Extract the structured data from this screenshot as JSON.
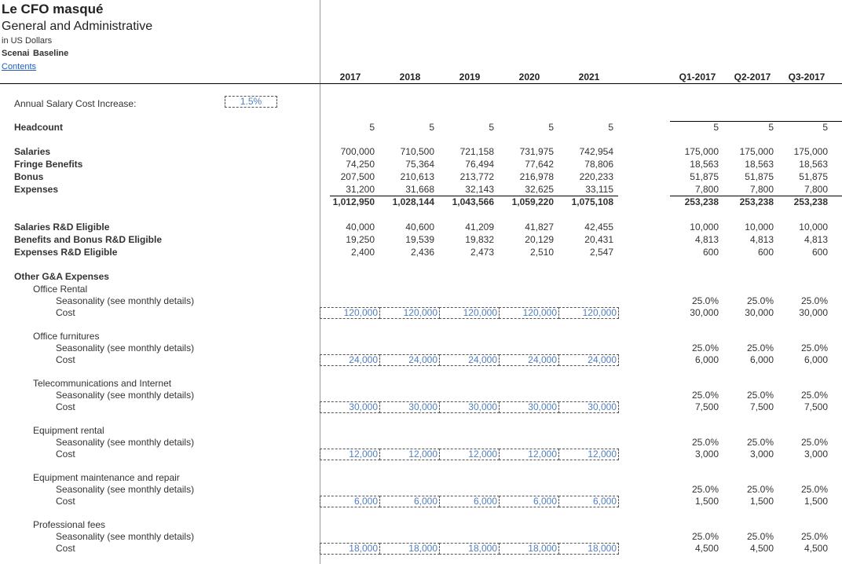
{
  "header": {
    "title": "Le CFO masqué",
    "subtitle": "General and Administrative",
    "units": "in US Dollars",
    "scenario_label": "Scenai",
    "scenario": "Baseline",
    "link": "Contents"
  },
  "years": [
    "2017",
    "2018",
    "2019",
    "2020",
    "2021"
  ],
  "quarters": [
    "Q1-2017",
    "Q2-2017",
    "Q3-2017"
  ],
  "salary_increase": {
    "label": "Annual Salary Cost Increase:",
    "value": "1.5%"
  },
  "headcount": {
    "label": "Headcount",
    "years": [
      "5",
      "5",
      "5",
      "5",
      "5"
    ],
    "quarters": [
      "5",
      "5",
      "5"
    ]
  },
  "payroll": [
    {
      "label": "Salaries",
      "years": [
        "700,000",
        "710,500",
        "721,158",
        "731,975",
        "742,954"
      ],
      "quarters": [
        "175,000",
        "175,000",
        "175,000"
      ]
    },
    {
      "label": "Fringe Benefits",
      "years": [
        "74,250",
        "75,364",
        "76,494",
        "77,642",
        "78,806"
      ],
      "quarters": [
        "18,563",
        "18,563",
        "18,563"
      ]
    },
    {
      "label": "Bonus",
      "years": [
        "207,500",
        "210,613",
        "213,772",
        "216,978",
        "220,233"
      ],
      "quarters": [
        "51,875",
        "51,875",
        "51,875"
      ]
    },
    {
      "label": "Expenses",
      "years": [
        "31,200",
        "31,668",
        "32,143",
        "32,625",
        "33,115"
      ],
      "quarters": [
        "7,800",
        "7,800",
        "7,800"
      ]
    }
  ],
  "payroll_total": {
    "years": [
      "1,012,950",
      "1,028,144",
      "1,043,566",
      "1,059,220",
      "1,075,108"
    ],
    "quarters": [
      "253,238",
      "253,238",
      "253,238"
    ]
  },
  "rd": [
    {
      "label": "Salaries R&D Eligible",
      "years": [
        "40,000",
        "40,600",
        "41,209",
        "41,827",
        "42,455"
      ],
      "quarters": [
        "10,000",
        "10,000",
        "10,000"
      ]
    },
    {
      "label": "Benefits and Bonus R&D Eligible",
      "years": [
        "19,250",
        "19,539",
        "19,832",
        "20,129",
        "20,431"
      ],
      "quarters": [
        "4,813",
        "4,813",
        "4,813"
      ]
    },
    {
      "label": "Expenses R&D Eligible",
      "years": [
        "2,400",
        "2,436",
        "2,473",
        "2,510",
        "2,547"
      ],
      "quarters": [
        "600",
        "600",
        "600"
      ]
    }
  ],
  "other": {
    "label": "Other G&A Expenses",
    "groups": [
      {
        "name": "Office Rental",
        "seasonality_label": "Seasonality (see monthly details)",
        "cost_label": "Cost",
        "years": [
          "120,000",
          "120,000",
          "120,000",
          "120,000",
          "120,000"
        ],
        "q_seasonality": [
          "25.0%",
          "25.0%",
          "25.0%"
        ],
        "q_cost": [
          "30,000",
          "30,000",
          "30,000"
        ]
      },
      {
        "name": "Office furnitures",
        "seasonality_label": "Seasonality (see monthly details)",
        "cost_label": "Cost",
        "years": [
          "24,000",
          "24,000",
          "24,000",
          "24,000",
          "24,000"
        ],
        "q_seasonality": [
          "25.0%",
          "25.0%",
          "25.0%"
        ],
        "q_cost": [
          "6,000",
          "6,000",
          "6,000"
        ]
      },
      {
        "name": "Telecommunications and Internet",
        "seasonality_label": "Seasonality (see monthly details)",
        "cost_label": "Cost",
        "years": [
          "30,000",
          "30,000",
          "30,000",
          "30,000",
          "30,000"
        ],
        "q_seasonality": [
          "25.0%",
          "25.0%",
          "25.0%"
        ],
        "q_cost": [
          "7,500",
          "7,500",
          "7,500"
        ]
      },
      {
        "name": "Equipment rental",
        "seasonality_label": "Seasonality (see monthly details)",
        "cost_label": "Cost",
        "years": [
          "12,000",
          "12,000",
          "12,000",
          "12,000",
          "12,000"
        ],
        "q_seasonality": [
          "25.0%",
          "25.0%",
          "25.0%"
        ],
        "q_cost": [
          "3,000",
          "3,000",
          "3,000"
        ]
      },
      {
        "name": "Equipment maintenance and repair",
        "seasonality_label": "Seasonality (see monthly details)",
        "cost_label": "Cost",
        "years": [
          "6,000",
          "6,000",
          "6,000",
          "6,000",
          "6,000"
        ],
        "q_seasonality": [
          "25.0%",
          "25.0%",
          "25.0%"
        ],
        "q_cost": [
          "1,500",
          "1,500",
          "1,500"
        ]
      },
      {
        "name": "Professional fees",
        "seasonality_label": "Seasonality (see monthly details)",
        "cost_label": "Cost",
        "years": [
          "18,000",
          "18,000",
          "18,000",
          "18,000",
          "18,000"
        ],
        "q_seasonality": [
          "25.0%",
          "25.0%",
          "25.0%"
        ],
        "q_cost": [
          "4,500",
          "4,500",
          "4,500"
        ]
      }
    ]
  }
}
